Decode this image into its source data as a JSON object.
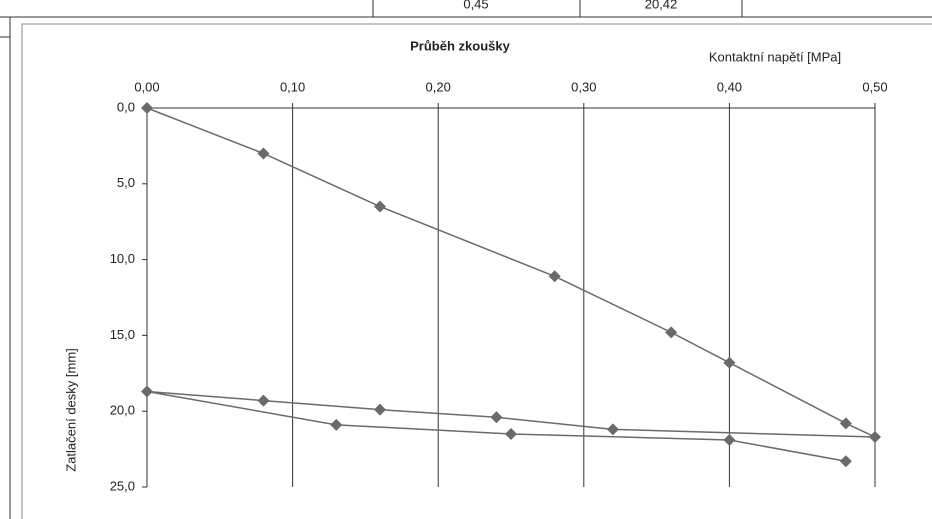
{
  "header": {
    "cells": [
      "0,45",
      "20,42"
    ]
  },
  "chart_data": {
    "type": "line",
    "title": "Průběh zkoušky",
    "x_label": "Kontaktní napětí [MPa]",
    "y_label": "Zatlačení desky [mm]",
    "x": [
      0,
      0.08,
      0.16,
      0.28,
      0.36,
      0.4,
      0.48,
      0.5,
      0.32,
      0.24,
      0.16,
      0.08,
      0,
      0.13,
      0.25,
      0.4,
      0.48
    ],
    "values": [
      0,
      3.0,
      6.5,
      11.1,
      14.8,
      16.8,
      20.8,
      21.7,
      21.2,
      20.4,
      19.9,
      19.3,
      18.7,
      20.9,
      21.5,
      21.9,
      23.3
    ],
    "color": "#6a6a6a",
    "xlim": [
      0,
      0.5
    ],
    "xticks": [
      {
        "value": 0,
        "label": "0,00"
      },
      {
        "value": 0.1,
        "label": "0,10"
      },
      {
        "value": 0.2,
        "label": "0,20"
      },
      {
        "value": 0.3,
        "label": "0,30"
      },
      {
        "value": 0.4,
        "label": "0,40"
      },
      {
        "value": 0.5,
        "label": "0,50"
      }
    ],
    "ylim": [
      0,
      25
    ],
    "yticks": [
      {
        "value": 0,
        "label": "0,0"
      },
      {
        "value": 5,
        "label": "5,0"
      },
      {
        "value": 10,
        "label": "10,0"
      },
      {
        "value": 15,
        "label": "15,0"
      },
      {
        "value": 20,
        "label": "20,0"
      },
      {
        "value": 25,
        "label": "25,0"
      }
    ],
    "y_inverted": true,
    "grid": true
  }
}
